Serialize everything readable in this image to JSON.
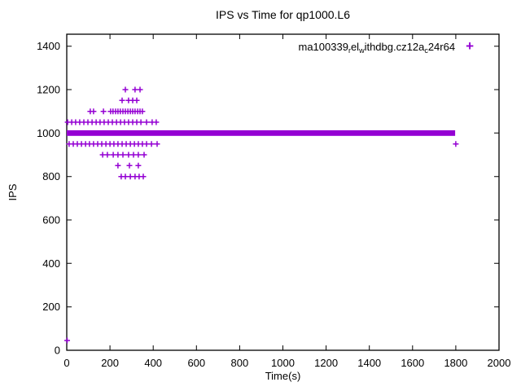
{
  "colors": {
    "marker": "#9400d3",
    "axis": "#000000",
    "background": "#ffffff",
    "text": "#000000"
  },
  "legend": {
    "label_plain": "ma100339_rel_withdbg.cz12a_c24r64",
    "label_parts": [
      {
        "t": "ma100339",
        "sub": false
      },
      {
        "t": "r",
        "sub": true
      },
      {
        "t": "el",
        "sub": false
      },
      {
        "t": "w",
        "sub": true
      },
      {
        "t": "ithdbg.cz12a",
        "sub": false
      },
      {
        "t": "c",
        "sub": true
      },
      {
        "t": "24r64",
        "sub": false
      }
    ],
    "marker_glyph": "+",
    "position": "top-right-inside"
  },
  "chart_data": {
    "type": "scatter",
    "title": "IPS vs Time for qp1000.L6",
    "xlabel": "Time(s)",
    "ylabel": "IPS",
    "xlim": [
      0,
      2000
    ],
    "ylim": [
      0,
      1455
    ],
    "xticks": [
      0,
      200,
      400,
      600,
      800,
      1000,
      1200,
      1400,
      1600,
      1800,
      2000
    ],
    "yticks": [
      0,
      200,
      400,
      600,
      800,
      1000,
      1200,
      1400
    ],
    "grid": false,
    "tick_style": "inward-mirrored",
    "band": {
      "t_start": 0,
      "t_end": 1797,
      "ips_min": 987,
      "ips_max": 1013,
      "note": "dense overlapping + markers at IPS ~1000 forming a solid bar"
    },
    "series": [
      {
        "name": "ma100339_rel_withdbg.cz12a_c24r64",
        "marker": "+",
        "color": "#9400d3",
        "points": [
          [
            271,
            1200
          ],
          [
            316,
            1200
          ],
          [
            339,
            1200
          ],
          [
            256,
            1150
          ],
          [
            286,
            1150
          ],
          [
            305,
            1150
          ],
          [
            324,
            1150
          ],
          [
            109,
            1100
          ],
          [
            124,
            1100
          ],
          [
            170,
            1100
          ],
          [
            203,
            1100
          ],
          [
            214,
            1100
          ],
          [
            226,
            1100
          ],
          [
            237,
            1100
          ],
          [
            248,
            1100
          ],
          [
            260,
            1100
          ],
          [
            271,
            1100
          ],
          [
            283,
            1100
          ],
          [
            294,
            1100
          ],
          [
            305,
            1100
          ],
          [
            316,
            1100
          ],
          [
            328,
            1100
          ],
          [
            339,
            1100
          ],
          [
            350,
            1100
          ],
          [
            4,
            1050
          ],
          [
            23,
            1050
          ],
          [
            41,
            1050
          ],
          [
            60,
            1050
          ],
          [
            79,
            1050
          ],
          [
            98,
            1050
          ],
          [
            117,
            1050
          ],
          [
            136,
            1050
          ],
          [
            154,
            1050
          ],
          [
            173,
            1050
          ],
          [
            192,
            1050
          ],
          [
            211,
            1050
          ],
          [
            230,
            1050
          ],
          [
            249,
            1050
          ],
          [
            267,
            1050
          ],
          [
            286,
            1050
          ],
          [
            305,
            1050
          ],
          [
            324,
            1050
          ],
          [
            343,
            1050
          ],
          [
            369,
            1050
          ],
          [
            395,
            1050
          ],
          [
            414,
            1050
          ],
          [
            11,
            950
          ],
          [
            30,
            950
          ],
          [
            49,
            950
          ],
          [
            68,
            950
          ],
          [
            87,
            950
          ],
          [
            105,
            950
          ],
          [
            124,
            950
          ],
          [
            143,
            950
          ],
          [
            162,
            950
          ],
          [
            181,
            950
          ],
          [
            200,
            950
          ],
          [
            218,
            950
          ],
          [
            237,
            950
          ],
          [
            256,
            950
          ],
          [
            275,
            950
          ],
          [
            294,
            950
          ],
          [
            313,
            950
          ],
          [
            331,
            950
          ],
          [
            350,
            950
          ],
          [
            369,
            950
          ],
          [
            392,
            950
          ],
          [
            418,
            950
          ],
          [
            166,
            900
          ],
          [
            188,
            900
          ],
          [
            215,
            900
          ],
          [
            237,
            900
          ],
          [
            260,
            900
          ],
          [
            286,
            900
          ],
          [
            309,
            900
          ],
          [
            331,
            900
          ],
          [
            358,
            900
          ],
          [
            237,
            850
          ],
          [
            290,
            850
          ],
          [
            331,
            850
          ],
          [
            252,
            800
          ],
          [
            271,
            800
          ],
          [
            294,
            800
          ],
          [
            316,
            800
          ],
          [
            335,
            800
          ],
          [
            354,
            800
          ],
          [
            2,
            45
          ],
          [
            1800,
            950
          ]
        ]
      }
    ]
  }
}
